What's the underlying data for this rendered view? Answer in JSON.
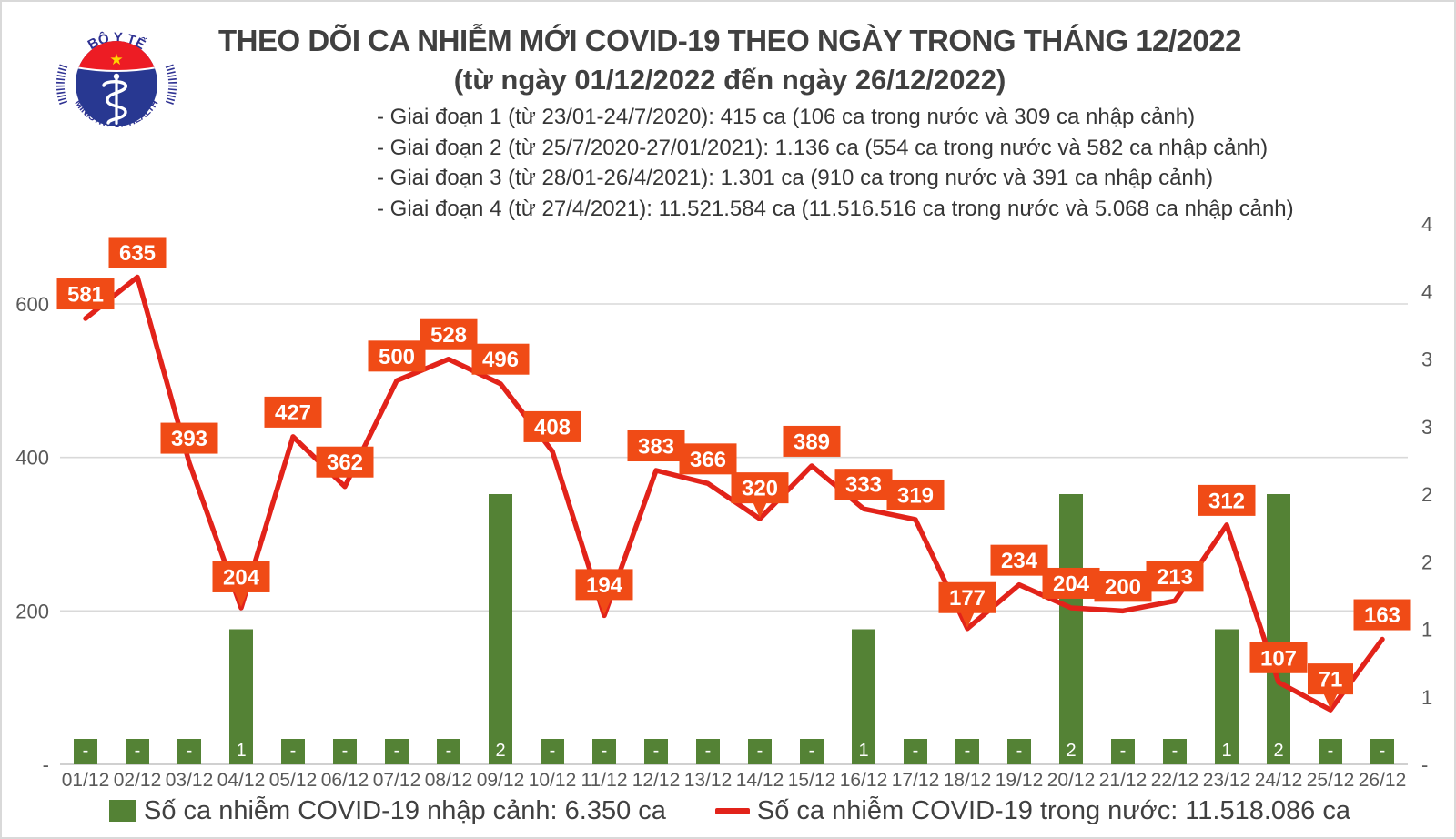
{
  "header": {
    "title": "THEO DÕI CA NHIỄM MỚI COVID-19 THEO NGÀY TRONG THÁNG 12/2022",
    "subtitle": "(từ ngày 01/12/2022 đến ngày 26/12/2022)",
    "phases": [
      "- Giai đoạn 1 (từ 23/01-24/7/2020): 415 ca (106 ca trong nước và 309 ca nhập cảnh)",
      "- Giai đoạn 2 (từ 25/7/2020-27/01/2021): 1.136 ca (554 ca trong nước và 582 ca nhập cảnh)",
      "- Giai đoạn 3 (từ 28/01-26/4/2021): 1.301 ca (910 ca trong nước và 391 ca nhập cảnh)",
      "- Giai đoạn 4 (từ 27/4/2021): 11.521.584 ca (11.516.516 ca trong nước và 5.068 ca nhập cảnh)"
    ]
  },
  "logo": {
    "top_text": "BỘ Y TẾ",
    "bottom_text": "MINISTRY OF HEALTH",
    "colors": {
      "ring_blue": "#2e3192",
      "flag_red": "#ed1c24",
      "oval_blue": "#283891",
      "star_yellow": "#ffd400"
    }
  },
  "chart_data": {
    "type": "bar+line combo",
    "title": "THEO DÕI CA NHIỄM MỚI COVID-19 THEO NGÀY TRONG THÁNG 12/2022",
    "categories": [
      "01/12",
      "02/12",
      "03/12",
      "04/12",
      "05/12",
      "06/12",
      "07/12",
      "08/12",
      "09/12",
      "10/12",
      "11/12",
      "12/12",
      "13/12",
      "14/12",
      "15/12",
      "16/12",
      "17/12",
      "18/12",
      "19/12",
      "20/12",
      "21/12",
      "22/12",
      "23/12",
      "24/12",
      "25/12",
      "26/12"
    ],
    "series": [
      {
        "name": "Số ca nhiễm COVID-19 trong nước",
        "type": "line",
        "axis": "left",
        "color": "#e2231a",
        "values": [
          581,
          635,
          393,
          204,
          427,
          362,
          500,
          528,
          496,
          408,
          194,
          383,
          366,
          320,
          389,
          333,
          319,
          177,
          234,
          204,
          200,
          213,
          312,
          107,
          71,
          163
        ]
      },
      {
        "name": "Số ca nhiễm COVID-19 nhập cảnh",
        "type": "bar",
        "axis": "right",
        "color": "#548235",
        "values": [
          0,
          0,
          0,
          1,
          0,
          0,
          0,
          0,
          2,
          0,
          0,
          0,
          0,
          0,
          0,
          1,
          0,
          0,
          0,
          2,
          0,
          0,
          1,
          2,
          0,
          0
        ],
        "value_labels": [
          "-",
          "-",
          "-",
          "1",
          "-",
          "-",
          "-",
          "-",
          "2",
          "-",
          "-",
          "-",
          "-",
          "-",
          "-",
          "1",
          "-",
          "-",
          "-",
          "2",
          "-",
          "-",
          "1",
          "2",
          "-",
          "-"
        ]
      }
    ],
    "label_box_color": "#f04b16",
    "pointer_indices": [
      3,
      10,
      13,
      17,
      24
    ],
    "left_axis": {
      "tick_values": [
        600,
        400,
        200,
        0
      ],
      "tick_labels": [
        "600",
        "400",
        "200",
        "-"
      ],
      "range": [
        0,
        700
      ]
    },
    "right_axis": {
      "tick_values": [
        4,
        3.5,
        3,
        2.5,
        2,
        1.5,
        1,
        0.5,
        0
      ],
      "tick_labels": [
        "4",
        "4",
        "3",
        "3",
        "2",
        "2",
        "1",
        "1",
        "-"
      ],
      "range": [
        0,
        4
      ]
    },
    "grid": "horizontal",
    "legend_position": "bottom"
  },
  "legend": [
    {
      "swatch": "green-square",
      "label": "Số ca nhiễm COVID-19 nhập cảnh: 6.350 ca",
      "color": "#548235"
    },
    {
      "swatch": "red-dash",
      "label": "Số ca nhiễm COVID-19 trong nước: 11.518.086 ca",
      "color": "#e2231a"
    }
  ],
  "style_colors": {
    "gridline": "#d9d9d9",
    "axis_text": "#595959",
    "baseline": "#c0c0c0"
  }
}
